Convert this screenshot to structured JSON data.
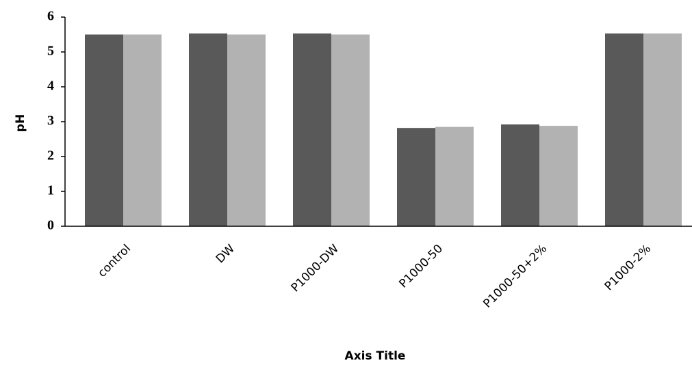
{
  "chart_data": {
    "type": "bar",
    "y_label": "pH",
    "x_label": "Axis Title",
    "categories": [
      "control",
      "DW",
      "P1000-DW",
      "P1000-50",
      "P1000-50+2%",
      "P1000-2%"
    ],
    "series": [
      {
        "color": "#595959",
        "values": [
          5.5,
          5.53,
          5.53,
          2.82,
          2.92,
          5.53
        ]
      },
      {
        "color": "#b2b2b2",
        "values": [
          5.5,
          5.5,
          5.5,
          2.85,
          2.88,
          5.53
        ]
      }
    ],
    "ylim": [
      0,
      6
    ],
    "yticks": [
      0,
      1,
      2,
      3,
      4,
      5,
      6
    ],
    "grid": false
  }
}
